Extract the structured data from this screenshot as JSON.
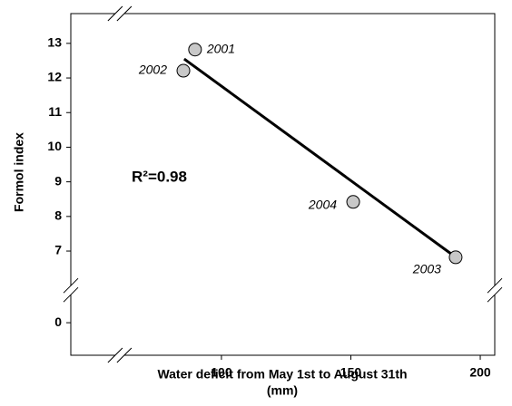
{
  "chart_data": {
    "type": "scatter",
    "x_label": [
      "Water deficit from May 1st to August 31th",
      "(mm)"
    ],
    "y_label": "Formol index",
    "annotation": "R²=0.98",
    "points": {
      "names": [
        "2001",
        "2002",
        "2004",
        "2003"
      ],
      "x": [
        89.8,
        85.3,
        150.9,
        190.5
      ],
      "y": [
        12.82,
        12.21,
        8.42,
        6.82
      ]
    },
    "fit": {
      "x": [
        85.6,
        190.2
      ],
      "y": [
        12.55,
        6.84
      ]
    },
    "point_color": "#c8c8c8",
    "line_color": "#000000",
    "xlim": [
      41.8,
      205.6
    ],
    "xbreak": 60.7,
    "xticks": [
      100,
      150,
      200
    ],
    "ylim": [
      -0.94,
      13.86
    ],
    "ybreak": [
      0.94,
      5.87
    ],
    "yticks": [
      0,
      7,
      8,
      9,
      10,
      11,
      12,
      13
    ]
  }
}
